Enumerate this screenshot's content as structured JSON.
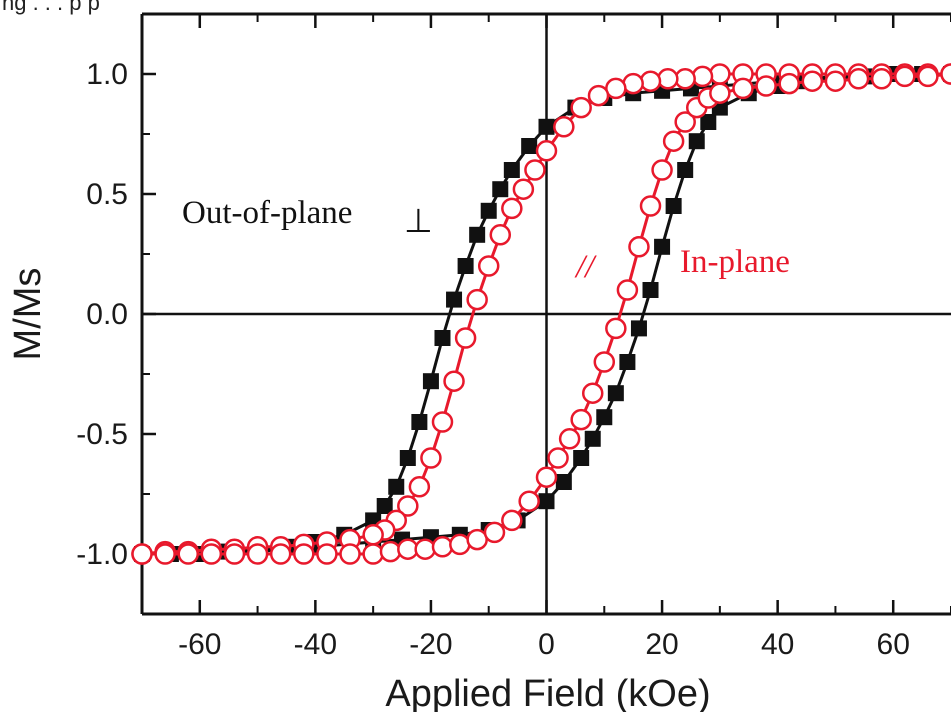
{
  "header_fragment": "ng . . . p p",
  "chart_data": {
    "type": "scatter",
    "title": "",
    "xlabel": "Applied Field (kOe)",
    "ylabel": "M/Ms",
    "xlim": [
      -70,
      70
    ],
    "ylim": [
      -1.25,
      1.25
    ],
    "x_ticks": [
      -60,
      -40,
      -20,
      0,
      20,
      40,
      60
    ],
    "x_tick_labels": [
      "-60",
      "-40",
      "-20",
      "0",
      "20",
      "40",
      "60"
    ],
    "y_ticks": [
      -1.0,
      -0.5,
      0.0,
      0.5,
      1.0
    ],
    "y_tick_labels": [
      "-1.0",
      "-0.5",
      "0.0",
      "0.5",
      "1.0"
    ],
    "grid": false,
    "zero_lines": true,
    "annotations": [
      {
        "text": "Out-of-plane",
        "symbol": "⊥",
        "color": "#111111"
      },
      {
        "text": "In-plane",
        "symbol": "//",
        "color": "#e8192c"
      }
    ],
    "series": [
      {
        "marker": "filled-square",
        "color": "#111111",
        "descending_branch": {
          "x": [
            70,
            60,
            50,
            40,
            30,
            25,
            20,
            15,
            10,
            5,
            0,
            -3,
            -6,
            -8,
            -10,
            -12,
            -14,
            -16,
            -18,
            -20,
            -22,
            -24,
            -26,
            -28,
            -30,
            -35,
            -40,
            -45,
            -50,
            -55,
            -60,
            -65,
            -70
          ],
          "y": [
            1.0,
            1.0,
            0.99,
            0.97,
            0.95,
            0.94,
            0.93,
            0.92,
            0.9,
            0.86,
            0.78,
            0.7,
            0.6,
            0.52,
            0.43,
            0.33,
            0.2,
            0.06,
            -0.1,
            -0.28,
            -0.45,
            -0.6,
            -0.72,
            -0.8,
            -0.86,
            -0.92,
            -0.95,
            -0.97,
            -0.98,
            -0.99,
            -1.0,
            -1.0,
            -1.0
          ]
        },
        "ascending_branch": {
          "x": [
            -70,
            -60,
            -50,
            -40,
            -30,
            -25,
            -20,
            -15,
            -10,
            -5,
            0,
            3,
            6,
            8,
            10,
            12,
            14,
            16,
            18,
            20,
            22,
            24,
            26,
            28,
            30,
            35,
            40,
            45,
            50,
            55,
            60,
            65,
            70
          ],
          "y": [
            -1.0,
            -1.0,
            -0.99,
            -0.97,
            -0.95,
            -0.94,
            -0.93,
            -0.92,
            -0.9,
            -0.86,
            -0.78,
            -0.7,
            -0.6,
            -0.52,
            -0.43,
            -0.33,
            -0.2,
            -0.06,
            0.1,
            0.28,
            0.45,
            0.6,
            0.72,
            0.8,
            0.86,
            0.92,
            0.95,
            0.97,
            0.98,
            0.99,
            1.0,
            1.0,
            1.0
          ]
        }
      },
      {
        "marker": "open-circle",
        "color": "#e8192c",
        "descending_branch": {
          "x": [
            70,
            66,
            62,
            58,
            54,
            50,
            46,
            42,
            38,
            34,
            30,
            27,
            24,
            21,
            18,
            15,
            12,
            9,
            6,
            3,
            0,
            -2,
            -4,
            -6,
            -8,
            -10,
            -12,
            -14,
            -16,
            -18,
            -20,
            -22,
            -24,
            -26,
            -28,
            -30,
            -34,
            -38,
            -42,
            -46,
            -50,
            -54,
            -58,
            -62,
            -66,
            -70
          ],
          "y": [
            1.0,
            1.0,
            1.0,
            1.0,
            1.0,
            1.0,
            1.0,
            1.0,
            1.0,
            1.0,
            1.0,
            0.99,
            0.98,
            0.98,
            0.97,
            0.96,
            0.94,
            0.91,
            0.86,
            0.78,
            0.68,
            0.6,
            0.52,
            0.44,
            0.33,
            0.2,
            0.06,
            -0.1,
            -0.28,
            -0.45,
            -0.6,
            -0.72,
            -0.8,
            -0.86,
            -0.9,
            -0.92,
            -0.94,
            -0.95,
            -0.96,
            -0.97,
            -0.97,
            -0.98,
            -0.98,
            -0.99,
            -0.99,
            -1.0
          ]
        },
        "ascending_branch": {
          "x": [
            -70,
            -66,
            -62,
            -58,
            -54,
            -50,
            -46,
            -42,
            -38,
            -34,
            -30,
            -27,
            -24,
            -21,
            -18,
            -15,
            -12,
            -9,
            -6,
            -3,
            0,
            2,
            4,
            6,
            8,
            10,
            12,
            14,
            16,
            18,
            20,
            22,
            24,
            26,
            28,
            30,
            34,
            38,
            42,
            46,
            50,
            54,
            58,
            62,
            66,
            70
          ],
          "y": [
            -1.0,
            -1.0,
            -1.0,
            -1.0,
            -1.0,
            -1.0,
            -1.0,
            -1.0,
            -1.0,
            -1.0,
            -1.0,
            -0.99,
            -0.98,
            -0.98,
            -0.97,
            -0.96,
            -0.94,
            -0.91,
            -0.86,
            -0.78,
            -0.68,
            -0.6,
            -0.52,
            -0.44,
            -0.33,
            -0.2,
            -0.06,
            0.1,
            0.28,
            0.45,
            0.6,
            0.72,
            0.8,
            0.86,
            0.9,
            0.92,
            0.94,
            0.95,
            0.96,
            0.97,
            0.97,
            0.98,
            0.98,
            0.99,
            0.99,
            1.0
          ]
        }
      }
    ]
  }
}
